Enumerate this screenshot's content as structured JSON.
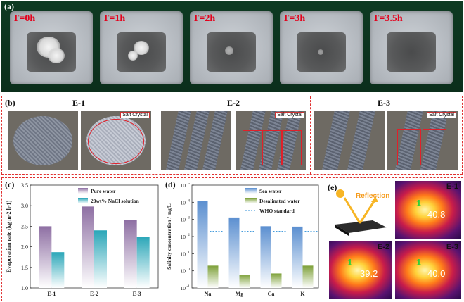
{
  "panel_a": {
    "label": "(a)",
    "times": [
      "T=0h",
      "T=1h",
      "T=2h",
      "T=3h",
      "T=3.5h"
    ]
  },
  "panel_b": {
    "label": "(b)",
    "groups": [
      "E-1",
      "E-2",
      "E-3"
    ],
    "crystal_label": "Salt Crystal"
  },
  "panel_c": {
    "label": "(c)"
  },
  "panel_d": {
    "label": "(d)"
  },
  "panel_e": {
    "label": "(e)",
    "reflection_label": "Reflection",
    "marker": "1",
    "views": [
      {
        "name": "E-1",
        "temp": "40.8"
      },
      {
        "name": "E-2",
        "temp": "39.2"
      },
      {
        "name": "E-3",
        "temp": "40.0"
      }
    ]
  },
  "chart_data": [
    {
      "type": "bar",
      "panel": "(c)",
      "categories": [
        "E-1",
        "E-2",
        "E-3"
      ],
      "series": [
        {
          "name": "Pure water",
          "values": [
            2.5,
            2.98,
            2.65
          ],
          "color": "#8e6fa3"
        },
        {
          "name": "20wt% NaCl solution",
          "values": [
            1.87,
            2.4,
            2.25
          ],
          "color": "#2aa6b8"
        }
      ],
      "title": "",
      "xlabel": "",
      "ylabel": "Evaporation rate (kg m-2 h-1)",
      "ylim": [
        1.0,
        3.5
      ],
      "yticks": [
        "1.0",
        "1.5",
        "2.0",
        "2.5",
        "3.0",
        "3.5"
      ]
    },
    {
      "type": "bar",
      "panel": "(d)",
      "scale": "log",
      "categories": [
        "Na",
        "Mg",
        "Ca",
        "K"
      ],
      "series": [
        {
          "name": "Sea water",
          "values": [
            12000,
            1300,
            400,
            380
          ],
          "color": "#5b8fd0"
        },
        {
          "name": "Desalinated water",
          "values": [
            2.0,
            0.6,
            0.7,
            2.0
          ],
          "color": "#7ea13a"
        }
      ],
      "reference": {
        "name": "WHO standard",
        "values": [
          200,
          200,
          200,
          200
        ]
      },
      "ylabel": "Salinity concentration / mg/L",
      "ylim_exp": [
        -1,
        5
      ],
      "yticks": [
        "10",
        "10",
        "10",
        "10",
        "10",
        "10",
        "10"
      ],
      "ytick_exponents": [
        "-1",
        "0",
        "1",
        "2",
        "3",
        "4",
        "5"
      ]
    }
  ]
}
